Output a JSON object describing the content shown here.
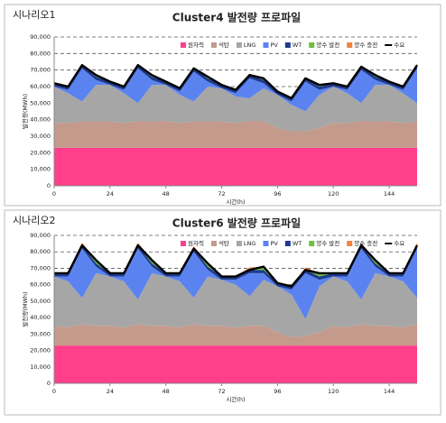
{
  "chart_data": [
    {
      "type": "stacked-area",
      "scenario": "시나리오1",
      "title": "Cluster4 발전량 프로파일",
      "xlabel": "시간(h)",
      "ylabel": "발전량(MWh)",
      "x": [
        0,
        6,
        12,
        18,
        24,
        30,
        36,
        42,
        48,
        54,
        60,
        66,
        72,
        78,
        84,
        90,
        96,
        102,
        108,
        114,
        120,
        126,
        132,
        138,
        144,
        150,
        156
      ],
      "xlim": [
        0,
        156
      ],
      "xticks": [
        0,
        24,
        48,
        72,
        96,
        120,
        144
      ],
      "ylim": [
        0,
        90000
      ],
      "yticks": [
        0,
        {
          "value": 10000,
          "label": "10,000"
        },
        {
          "value": 20000,
          "label": "20,000"
        },
        {
          "value": 30000,
          "label": "30,000"
        },
        {
          "value": 40000,
          "label": "40,000"
        },
        {
          "value": 50000,
          "label": "50,000"
        },
        {
          "value": 60000,
          "label": "60,000"
        },
        {
          "value": 70000,
          "label": "70,000"
        },
        {
          "value": 80000,
          "label": "80,000"
        },
        {
          "value": 90000,
          "label": "90,000"
        }
      ],
      "grid": true,
      "series": [
        {
          "name": "원자력",
          "color": "#ff3f8a",
          "values": [
            23000,
            23000,
            23000,
            23000,
            23000,
            23000,
            23000,
            23000,
            23000,
            23000,
            23000,
            23000,
            23000,
            23000,
            23000,
            23000,
            23000,
            23000,
            23000,
            23000,
            23000,
            23000,
            23000,
            23000,
            23000,
            23000,
            23000
          ]
        },
        {
          "name": "석탄",
          "color": "#c49a8c",
          "values": [
            15000,
            15000,
            16000,
            16000,
            16000,
            15000,
            16000,
            16000,
            16000,
            15000,
            16000,
            16000,
            16000,
            15000,
            16000,
            16000,
            12000,
            10000,
            10000,
            12000,
            15000,
            15000,
            16000,
            16000,
            16000,
            15000,
            16000
          ]
        },
        {
          "name": "LNG",
          "color": "#a6a6a6",
          "values": [
            22000,
            18000,
            12000,
            22000,
            22000,
            18000,
            11000,
            22000,
            22000,
            17000,
            12000,
            21000,
            20000,
            16000,
            14000,
            20000,
            20000,
            16000,
            12000,
            20000,
            22000,
            18000,
            11000,
            22000,
            22000,
            18000,
            11000
          ]
        },
        {
          "name": "PV",
          "color": "#5b83f0",
          "values": [
            0,
            2000,
            20000,
            3000,
            0,
            2000,
            21000,
            3000,
            0,
            2000,
            18000,
            3000,
            0,
            2000,
            12000,
            3000,
            0,
            2000,
            18000,
            3000,
            0,
            2000,
            20000,
            3000,
            0,
            2000,
            21000
          ]
        },
        {
          "name": "WT",
          "color": "#1f3b8c",
          "values": [
            2000,
            2000,
            2000,
            2000,
            2000,
            2000,
            2000,
            2000,
            2000,
            2000,
            2000,
            2000,
            2000,
            2000,
            2000,
            2000,
            2000,
            2000,
            2000,
            2000,
            2000,
            2000,
            2000,
            2000,
            2000,
            2000,
            2000
          ]
        },
        {
          "name": "양수 발전",
          "color": "#6cbf3c",
          "values": [
            0,
            0,
            0,
            1000,
            0,
            0,
            0,
            1000,
            0,
            0,
            0,
            1000,
            0,
            0,
            0,
            1000,
            0,
            0,
            0,
            1000,
            0,
            0,
            0,
            1000,
            0,
            0,
            0
          ]
        },
        {
          "name": "양수 충전",
          "color": "#f0843c",
          "values": [
            0,
            0,
            800,
            0,
            0,
            0,
            800,
            0,
            0,
            0,
            800,
            0,
            0,
            0,
            800,
            0,
            0,
            0,
            800,
            0,
            0,
            0,
            800,
            0,
            0,
            0,
            800
          ]
        }
      ],
      "line": {
        "name": "수요",
        "color": "#000000",
        "values": [
          62000,
          60000,
          73000,
          67000,
          63000,
          60000,
          73000,
          67000,
          63000,
          59000,
          71000,
          66000,
          61000,
          58000,
          67000,
          65000,
          57000,
          53000,
          65000,
          61000,
          62000,
          60000,
          72000,
          67000,
          63000,
          60000,
          73000
        ]
      }
    },
    {
      "type": "stacked-area",
      "scenario": "시나리오2",
      "title": "Cluster6 발전량 프로파일",
      "xlabel": "시간(h)",
      "ylabel": "발전량(MWh)",
      "x": [
        0,
        6,
        12,
        18,
        24,
        30,
        36,
        42,
        48,
        54,
        60,
        66,
        72,
        78,
        84,
        90,
        96,
        102,
        108,
        114,
        120,
        126,
        132,
        138,
        144,
        150,
        156
      ],
      "xlim": [
        0,
        156
      ],
      "xticks": [
        0,
        24,
        48,
        72,
        96,
        120,
        144
      ],
      "ylim": [
        0,
        90000
      ],
      "yticks": [
        0,
        {
          "value": 10000,
          "label": "10,000"
        },
        {
          "value": 20000,
          "label": "20,000"
        },
        {
          "value": 30000,
          "label": "30,000"
        },
        {
          "value": 40000,
          "label": "40,000"
        },
        {
          "value": 50000,
          "label": "50,000"
        },
        {
          "value": 60000,
          "label": "60,000"
        },
        {
          "value": 70000,
          "label": "70,000"
        },
        {
          "value": 80000,
          "label": "80,000"
        },
        {
          "value": 90000,
          "label": "90,000"
        }
      ],
      "grid": true,
      "series": [
        {
          "name": "원자력",
          "color": "#ff3f8a",
          "values": [
            23000,
            23000,
            23000,
            23000,
            23000,
            23000,
            23000,
            23000,
            23000,
            23000,
            23000,
            23000,
            23000,
            23000,
            23000,
            23000,
            23000,
            23000,
            23000,
            23000,
            23000,
            23000,
            23000,
            23000,
            23000,
            23000,
            23000
          ]
        },
        {
          "name": "석탄",
          "color": "#c49a8c",
          "values": [
            12000,
            11000,
            13000,
            12000,
            12000,
            11000,
            13000,
            12000,
            12000,
            11000,
            13000,
            12000,
            12000,
            11000,
            12000,
            12000,
            8000,
            5000,
            6000,
            8000,
            12000,
            11000,
            13000,
            12000,
            12000,
            11000,
            13000
          ]
        },
        {
          "name": "LNG",
          "color": "#a6a6a6",
          "values": [
            30000,
            28000,
            16000,
            32000,
            30000,
            28000,
            15000,
            32000,
            30000,
            28000,
            16000,
            30000,
            28000,
            26000,
            18000,
            28000,
            28000,
            26000,
            10000,
            28000,
            30000,
            28000,
            15000,
            32000,
            30000,
            28000,
            16000
          ]
        },
        {
          "name": "PV",
          "color": "#5b83f0",
          "values": [
            0,
            3000,
            30000,
            4000,
            0,
            3000,
            31000,
            4000,
            0,
            3000,
            28000,
            4000,
            0,
            3000,
            14000,
            4000,
            0,
            3000,
            28000,
            4000,
            0,
            3000,
            31000,
            4000,
            0,
            3000,
            30000
          ]
        },
        {
          "name": "WT",
          "color": "#1f3b8c",
          "values": [
            2000,
            2000,
            2000,
            2000,
            2000,
            2000,
            2000,
            2000,
            2000,
            2000,
            2000,
            2000,
            2000,
            2000,
            2000,
            2000,
            2000,
            2000,
            2000,
            2000,
            2000,
            2000,
            2000,
            2000,
            2000,
            2000,
            2000
          ]
        },
        {
          "name": "양수 발전",
          "color": "#6cbf3c",
          "values": [
            0,
            0,
            0,
            2000,
            0,
            0,
            0,
            2000,
            0,
            0,
            0,
            2000,
            0,
            0,
            0,
            2000,
            0,
            0,
            0,
            2000,
            0,
            0,
            0,
            2000,
            0,
            0,
            0
          ]
        },
        {
          "name": "양수 충전",
          "color": "#f0843c",
          "values": [
            0,
            0,
            1500,
            0,
            0,
            0,
            1500,
            0,
            0,
            0,
            1500,
            0,
            0,
            0,
            1500,
            0,
            0,
            0,
            1500,
            0,
            0,
            0,
            1500,
            0,
            0,
            0,
            1500
          ]
        }
      ],
      "line": {
        "name": "수요",
        "color": "#000000",
        "values": [
          67000,
          67000,
          84000,
          75000,
          67000,
          67000,
          84000,
          75000,
          67000,
          67000,
          82000,
          73000,
          65000,
          65000,
          69000,
          71000,
          61000,
          59000,
          69000,
          67000,
          67000,
          67000,
          84000,
          75000,
          67000,
          67000,
          84000
        ]
      }
    }
  ]
}
